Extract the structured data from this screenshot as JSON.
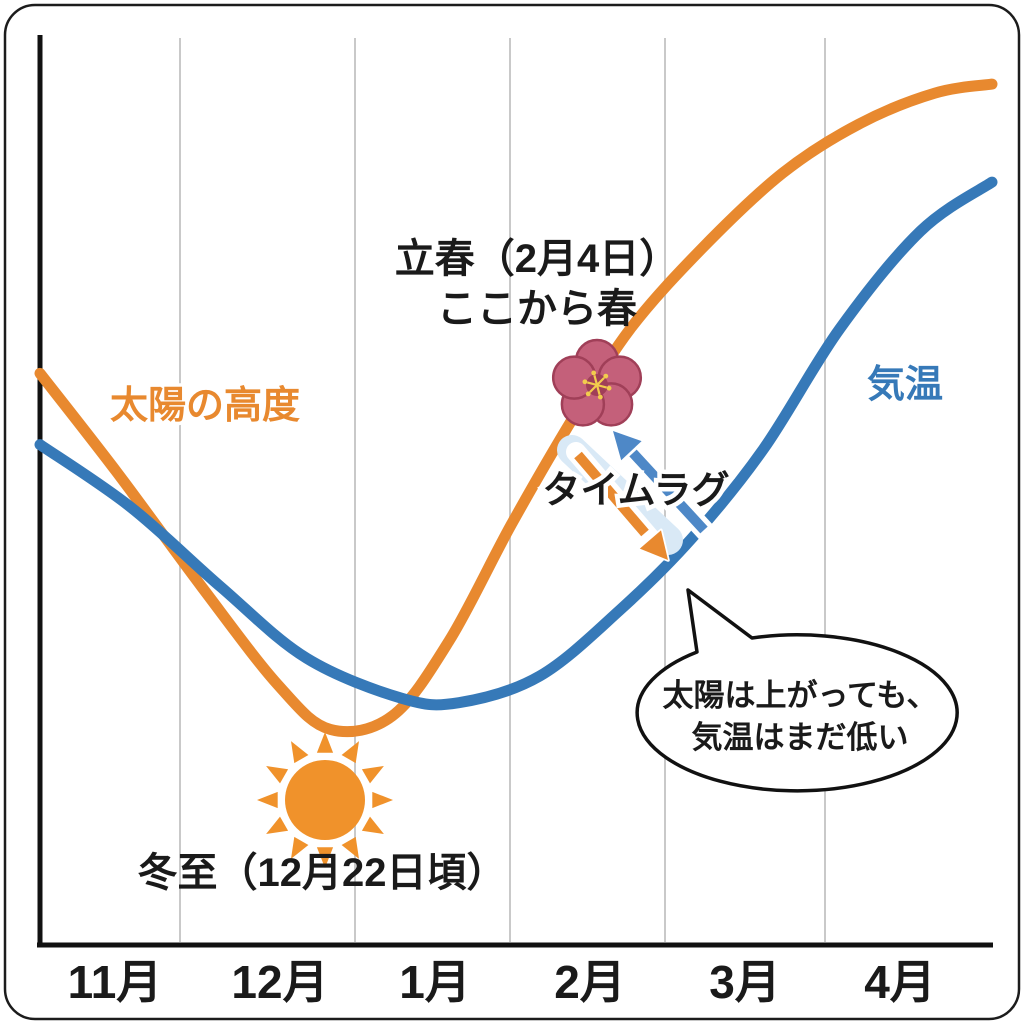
{
  "chart_data": {
    "type": "line",
    "title": "",
    "x_categories": [
      "11月",
      "12月",
      "1月",
      "2月",
      "3月",
      "4月"
    ],
    "y_axis_label": "",
    "grid": "vertical-only",
    "legend_position": "inline-labels",
    "point_space": "x: 0=left edge of plot to 100=right edge; y: 0=bottom axis to 100=top of plot (relative height, no numeric scale shown)",
    "series": [
      {
        "name": "太陽の高度",
        "color": "#E8892F",
        "points": [
          [
            0,
            64
          ],
          [
            8,
            53
          ],
          [
            17,
            40
          ],
          [
            25,
            29
          ],
          [
            30.5,
            24
          ],
          [
            37,
            25.5
          ],
          [
            43,
            34
          ],
          [
            49.5,
            47
          ],
          [
            56,
            59
          ],
          [
            62,
            69
          ],
          [
            69.5,
            78
          ],
          [
            78,
            86.5
          ],
          [
            86,
            92
          ],
          [
            94,
            95.5
          ],
          [
            100,
            96.5
          ]
        ]
      },
      {
        "name": "気温",
        "color": "#3679B8",
        "points": [
          [
            0,
            56
          ],
          [
            9.5,
            49
          ],
          [
            19,
            40
          ],
          [
            28,
            32
          ],
          [
            38,
            27.5
          ],
          [
            44,
            27
          ],
          [
            52.5,
            30
          ],
          [
            61,
            37.5
          ],
          [
            68.5,
            45.5
          ],
          [
            76,
            55.5
          ],
          [
            84,
            69
          ],
          [
            92.5,
            80
          ],
          [
            100,
            85.5
          ]
        ]
      }
    ]
  },
  "annotations": {
    "risshun": {
      "line1": "立春（2月4日）",
      "line2": "ここから春"
    },
    "timelag": {
      "text": "タイムラグ"
    },
    "touji": {
      "text": "冬至（12月22日頃）"
    },
    "speech_bubble": {
      "line1": "太陽は上がっても、",
      "line2": "気温はまだ低い"
    }
  },
  "icons": {
    "plum_blossom": "plum-blossom-icon",
    "sun": "sun-icon"
  },
  "colors": {
    "sun_curve": "#E8892F",
    "temp_curve": "#3679B8",
    "grid": "#C9C9C9",
    "axis": "#111111",
    "text": "#1A1A1A",
    "sun_icon": "#F0922B",
    "plum_petal": "#C4607A",
    "plum_petal_edge": "#A03F58",
    "plum_stamen": "#F2CC4D",
    "arrow_blue": "#4E88C7",
    "arrow_orange": "#E8892F",
    "arrow_pale": "#D9E9F6",
    "bubble_border": "#111111",
    "background": "#FFFFFF"
  }
}
